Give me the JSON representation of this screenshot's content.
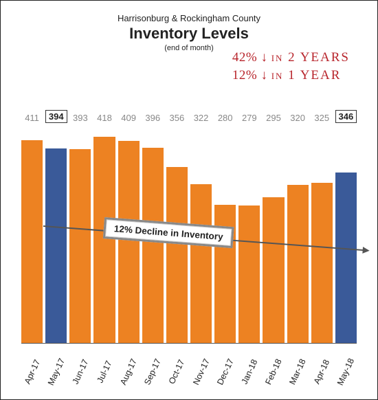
{
  "header": {
    "supertitle": "Harrisonburg & Rockingham County",
    "title": "Inventory Levels",
    "subtitle": "(end of month)"
  },
  "handwritten": {
    "line1_pct": "42%",
    "line1_rest": "in 2 YEARS",
    "line2_pct": "12%",
    "line2_rest": "in 1 YEAR"
  },
  "annotation": {
    "text": "12% Decline in Inventory"
  },
  "chart": {
    "type": "bar",
    "ymax": 440,
    "colors": {
      "normal": "#ed8222",
      "highlight": "#3a5a99",
      "label_plain": "#888888",
      "label_boxed_border": "#333333",
      "axis": "#555555",
      "background": "#ffffff"
    },
    "label_fontsize": 13,
    "axis_fontsize": 12.5,
    "categories": [
      "Apr-17",
      "May-17",
      "Jun-17",
      "Jul-17",
      "Aug-17",
      "Sep-17",
      "Oct-17",
      "Nov-17",
      "Dec-17",
      "Jan-18",
      "Feb-18",
      "Mar-18",
      "Apr-18",
      "May-18"
    ],
    "values": [
      411,
      394,
      393,
      418,
      409,
      396,
      356,
      322,
      280,
      279,
      295,
      320,
      325,
      346
    ],
    "highlighted": [
      false,
      true,
      false,
      false,
      false,
      false,
      false,
      false,
      false,
      false,
      false,
      false,
      false,
      true
    ]
  }
}
